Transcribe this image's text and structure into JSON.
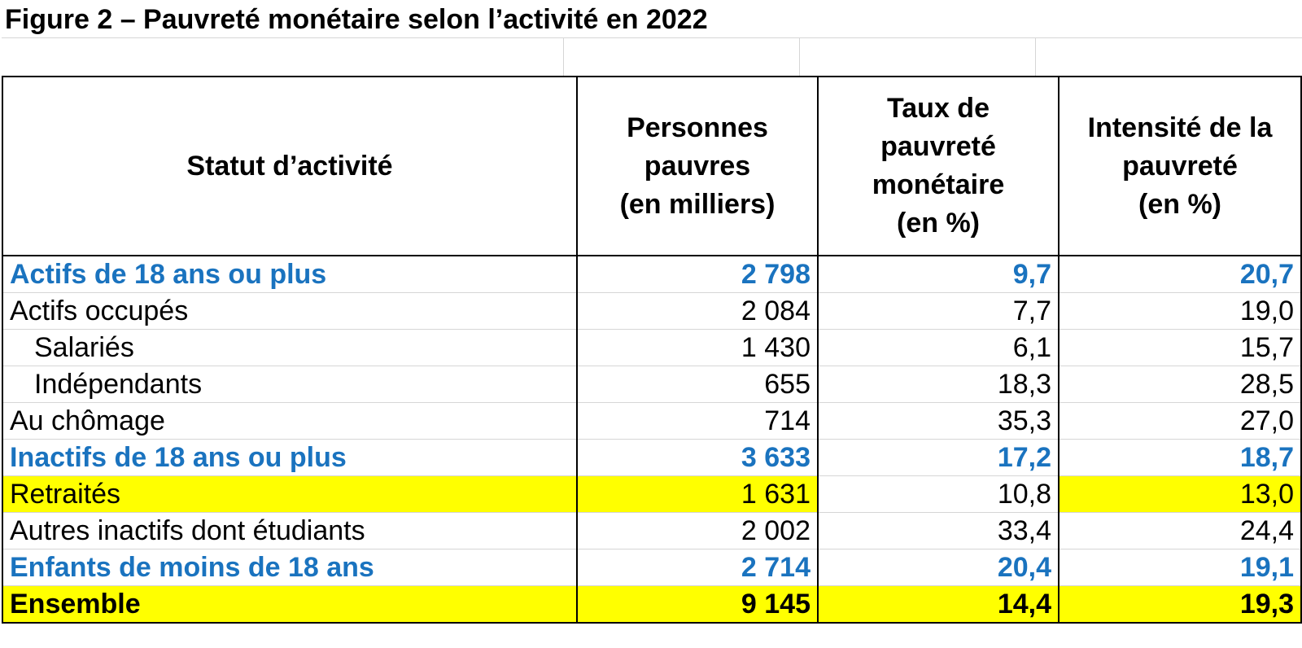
{
  "title": "Figure 2 – Pauvreté monétaire selon l’activité en 2022",
  "colors": {
    "subtotal_text": "#1a73bf",
    "highlight": "#ffff00"
  },
  "table": {
    "headers": {
      "col1": "Statut d’activité",
      "col2_line1": "Personnes",
      "col2_line2": "pauvres",
      "col2_line3": "(en milliers)",
      "col3_line1": "Taux de",
      "col3_line2": "pauvreté",
      "col3_line3": "monétaire",
      "col3_line4": "(en %)",
      "col4_line1": "Intensité de la",
      "col4_line2": "pauvreté",
      "col4_line3": "(en %)"
    },
    "rows": [
      {
        "label": "Actifs de 18 ans ou plus",
        "persons": "2 798",
        "rate": "9,7",
        "intensity": "20,7"
      },
      {
        "label": "Actifs occupés",
        "persons": "2 084",
        "rate": "7,7",
        "intensity": "19,0"
      },
      {
        "label": "Salariés",
        "persons": "1 430",
        "rate": "6,1",
        "intensity": "15,7"
      },
      {
        "label": "Indépendants",
        "persons": "655",
        "rate": "18,3",
        "intensity": "28,5"
      },
      {
        "label": "Au chômage",
        "persons": "714",
        "rate": "35,3",
        "intensity": "27,0"
      },
      {
        "label": "Inactifs de 18 ans ou plus",
        "persons": "3 633",
        "rate": "17,2",
        "intensity": "18,7"
      },
      {
        "label": "Retraités",
        "persons": "1 631",
        "rate": "10,8",
        "intensity": "13,0"
      },
      {
        "label": "Autres inactifs dont étudiants",
        "persons": "2 002",
        "rate": "33,4",
        "intensity": "24,4"
      },
      {
        "label": "Enfants de moins de 18 ans",
        "persons": "2 714",
        "rate": "20,4",
        "intensity": "19,1"
      },
      {
        "label": "Ensemble",
        "persons": "9 145",
        "rate": "14,4",
        "intensity": "19,3"
      }
    ]
  }
}
